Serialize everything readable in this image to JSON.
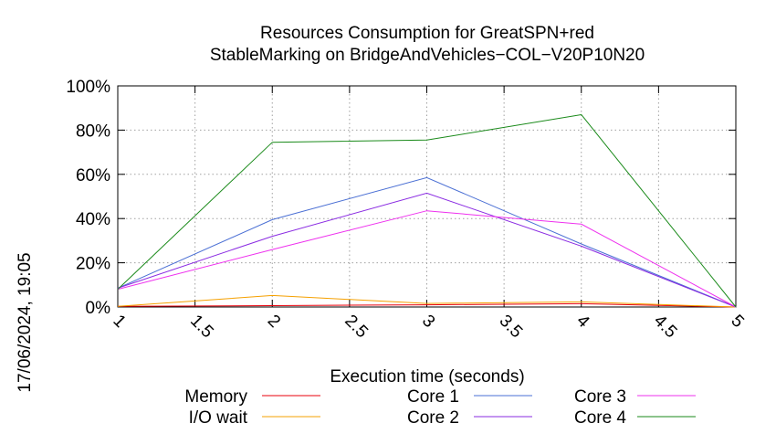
{
  "chart_data": {
    "type": "line",
    "title": "Resources Consumption for GreatSPN+red",
    "subtitle": "StableMarking on BridgeAndVehicles−COL−V20P10N20",
    "xlabel": "Execution time (seconds)",
    "ylabel": "",
    "timestamp": "17/06/2024, 19:05",
    "xlim": [
      1,
      5
    ],
    "ylim": [
      0,
      100
    ],
    "x_ticks": [
      "1",
      "1.5",
      "2",
      "2.5",
      "3",
      "3.5",
      "4",
      "4.5",
      "5"
    ],
    "y_ticks": [
      "0%",
      "20%",
      "40%",
      "60%",
      "80%",
      "100%"
    ],
    "grid": true,
    "legend_position": "bottom",
    "x": [
      1,
      2,
      3,
      4,
      5
    ],
    "series": [
      {
        "name": "Memory",
        "color": "#e8000b",
        "values": [
          0.3,
          0.6,
          1.0,
          1.5,
          0
        ]
      },
      {
        "name": "I/O wait",
        "color": "#f5a000",
        "values": [
          0.3,
          5.2,
          1.6,
          2.3,
          0
        ]
      },
      {
        "name": "Core 1",
        "color": "#4a6fd4",
        "values": [
          8.5,
          39.5,
          58.5,
          28.5,
          0
        ]
      },
      {
        "name": "Core 2",
        "color": "#8a2be2",
        "values": [
          8.5,
          32.0,
          51.5,
          27.5,
          0
        ]
      },
      {
        "name": "Core 3",
        "color": "#ee30ee",
        "values": [
          8.0,
          26.0,
          43.5,
          37.5,
          0
        ]
      },
      {
        "name": "Core 4",
        "color": "#1a8a1a",
        "values": [
          8.0,
          74.5,
          75.5,
          87.0,
          0
        ]
      }
    ]
  }
}
